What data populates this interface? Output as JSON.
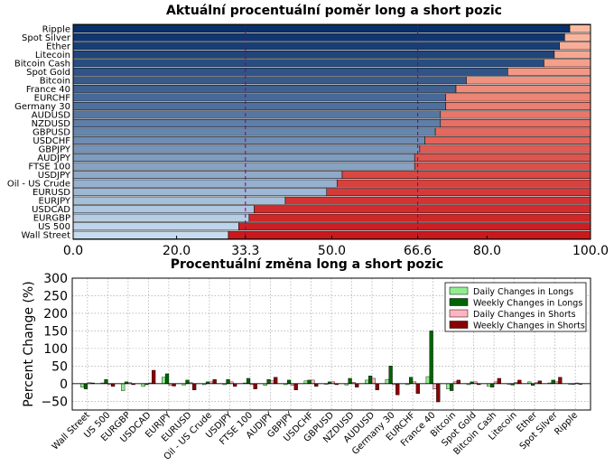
{
  "chart_data": [
    {
      "type": "bar",
      "orientation": "horizontal-stacked",
      "title": "Aktuální procentuální poměr long a short pozic",
      "categories": [
        "Ripple",
        "Spot Silver",
        "Ether",
        "Litecoin",
        "Bitcoin Cash",
        "Spot Gold",
        "Bitcoin",
        "France 40",
        "EURCHF",
        "Germany 30",
        "AUDUSD",
        "NZDUSD",
        "GBPUSD",
        "USDCHF",
        "GBPJPY",
        "AUDJPY",
        "FTSE 100",
        "USDJPY",
        "Oil - US Crude",
        "EURUSD",
        "EURJPY",
        "USDCAD",
        "EURGBP",
        "US 500",
        "Wall Street"
      ],
      "long_pct": [
        96,
        95,
        94,
        93,
        91,
        84,
        76,
        74,
        72,
        72,
        71,
        71,
        70,
        68,
        67,
        66,
        66,
        52,
        51,
        49,
        41,
        35,
        34,
        32,
        30
      ],
      "xlim": [
        0,
        100
      ],
      "xticks": [
        "0.0",
        "20.0",
        "33.3",
        "50.0",
        "66.6",
        "80.0",
        "100.0"
      ],
      "highlight_ticks": [
        "33.3",
        "66.6"
      ],
      "colors": {
        "long_dark": "#08306b",
        "long_light": "#c6dbef",
        "short_light": "#fcbba1",
        "short_dark": "#cb181d",
        "highlight": "#800080"
      }
    },
    {
      "type": "bar",
      "orientation": "vertical-grouped",
      "title": "Procentuální změna long a short pozic",
      "ylabel": "Percent Change (%)",
      "ylim": [
        -75,
        300
      ],
      "yticks": [
        "300",
        "250",
        "200",
        "150",
        "100",
        "50",
        "0",
        "−50"
      ],
      "categories": [
        "Wall Street",
        "US 500",
        "EURGBP",
        "USDCAD",
        "EURJPY",
        "EURUSD",
        "Oil - US Crude",
        "USDJPY",
        "FTSE 100",
        "AUDJPY",
        "GBPJPY",
        "USDCHF",
        "GBPUSD",
        "NZDUSD",
        "AUDUSD",
        "Germany 30",
        "EURCHF",
        "France 40",
        "Bitcoin",
        "Spot Gold",
        "Bitcoin Cash",
        "Litecoin",
        "Ether",
        "Spot Silver",
        "Ripple"
      ],
      "series": [
        {
          "name": "Daily Changes in Longs",
          "color": "#90ee90",
          "values": [
            -10,
            2,
            -20,
            -8,
            18,
            -4,
            -3,
            -3,
            2,
            -5,
            -3,
            8,
            -2,
            -4,
            10,
            12,
            -3,
            20,
            -15,
            -3,
            -8,
            -2,
            5,
            2,
            -2
          ]
        },
        {
          "name": "Weekly Changes in Longs",
          "color": "#006400",
          "values": [
            -15,
            12,
            5,
            -3,
            28,
            10,
            5,
            12,
            15,
            12,
            10,
            10,
            5,
            15,
            22,
            50,
            18,
            150,
            -20,
            5,
            -10,
            -4,
            -5,
            10,
            -2
          ]
        },
        {
          "name": "Daily Changes in Shorts",
          "color": "#ffb6c1",
          "values": [
            3,
            -3,
            3,
            2,
            -5,
            3,
            5,
            5,
            -3,
            8,
            -5,
            10,
            5,
            4,
            15,
            -3,
            5,
            -15,
            5,
            5,
            5,
            4,
            3,
            5,
            2
          ]
        },
        {
          "name": "Weekly Changes in Shorts",
          "color": "#8b0000",
          "values": [
            2,
            -8,
            -3,
            38,
            -7,
            -18,
            12,
            -8,
            -15,
            18,
            -18,
            -8,
            -3,
            -10,
            -18,
            -32,
            -28,
            -52,
            10,
            -3,
            15,
            10,
            8,
            18,
            -2
          ]
        }
      ]
    }
  ]
}
